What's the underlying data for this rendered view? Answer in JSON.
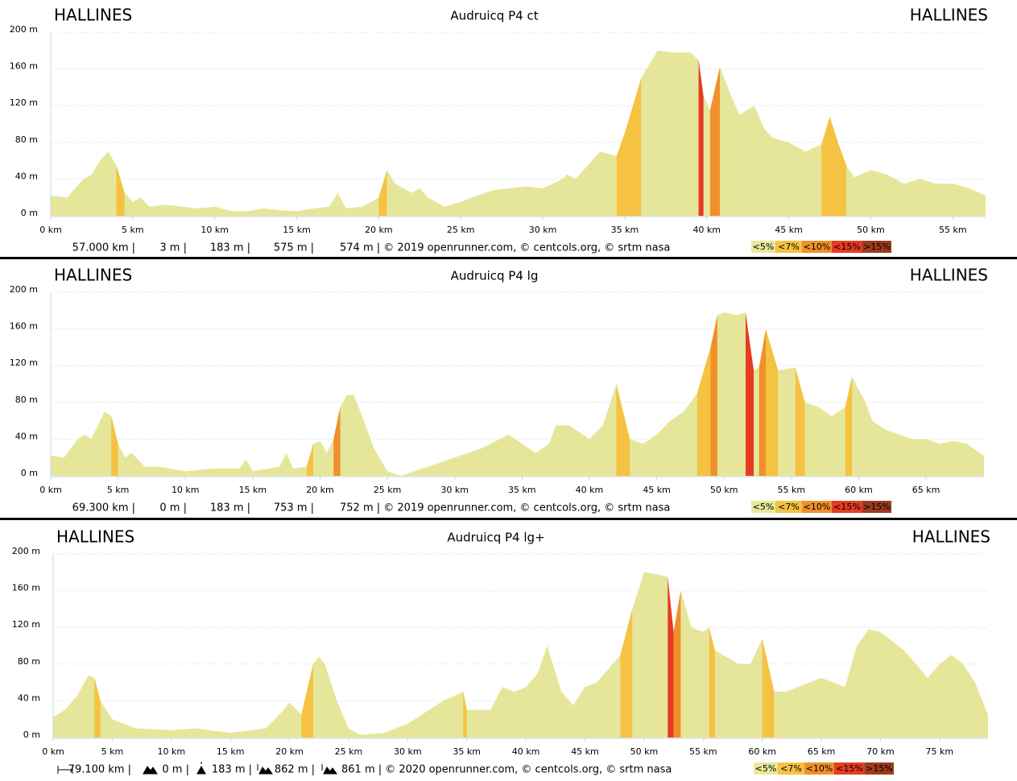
{
  "chart_data": [
    {
      "type": "area",
      "start_label": "HALLINES",
      "title": "Audruicq P4 ct",
      "end_label": "HALLINES",
      "x": [
        0,
        1,
        2,
        2.5,
        3,
        3.5,
        4,
        4.5,
        5,
        5.5,
        6,
        7,
        8,
        9,
        10,
        11,
        12,
        13,
        14,
        15,
        16,
        17,
        17.5,
        18,
        19,
        20,
        20.5,
        21,
        21.5,
        22,
        22.5,
        23,
        24,
        25,
        26,
        27,
        28,
        29,
        30,
        31,
        31.5,
        32,
        33,
        33.5,
        34.5,
        35,
        35.5,
        36,
        36.5,
        37,
        38,
        39,
        39.5,
        39.8,
        40.2,
        40.8,
        41.5,
        42,
        42.9,
        43.5,
        44,
        45,
        46,
        47,
        47.5,
        48,
        48.5,
        49,
        50,
        51,
        52,
        53,
        54,
        55,
        56,
        57
      ],
      "values": [
        22,
        20,
        40,
        45,
        60,
        70,
        55,
        25,
        15,
        20,
        10,
        12,
        10,
        8,
        10,
        5,
        5,
        8,
        6,
        5,
        8,
        10,
        25,
        8,
        10,
        20,
        50,
        35,
        30,
        25,
        30,
        20,
        10,
        15,
        22,
        28,
        30,
        32,
        30,
        38,
        45,
        40,
        60,
        70,
        65,
        90,
        120,
        150,
        165,
        180,
        178,
        178,
        170,
        130,
        115,
        162,
        130,
        110,
        120,
        95,
        85,
        80,
        70,
        78,
        108,
        80,
        55,
        42,
        50,
        45,
        35,
        40,
        35,
        35,
        30,
        22
      ],
      "color": "#e6e69a",
      "xlim": [
        0,
        57
      ],
      "ylim": [
        0,
        200
      ],
      "xticks": [
        {
          "value": 0,
          "label": "0 km"
        },
        {
          "value": 5,
          "label": "5 km"
        },
        {
          "value": 10,
          "label": "10 km"
        },
        {
          "value": 15,
          "label": "15 km"
        },
        {
          "value": 20,
          "label": "20 km"
        },
        {
          "value": 25,
          "label": "25 km"
        },
        {
          "value": 30,
          "label": "30 km"
        },
        {
          "value": 35,
          "label": "35 km"
        },
        {
          "value": 40,
          "label": "40 km"
        },
        {
          "value": 45,
          "label": "45 km"
        },
        {
          "value": 50,
          "label": "50 km"
        },
        {
          "value": 55,
          "label": "55 km"
        }
      ],
      "yticks": [
        {
          "value": 0,
          "label": "0 m"
        },
        {
          "value": 40,
          "label": "40 m"
        },
        {
          "value": 80,
          "label": "80 m"
        },
        {
          "value": 120,
          "label": "120 m"
        },
        {
          "value": 160,
          "label": "160 m"
        },
        {
          "value": 200,
          "label": "200 m"
        }
      ],
      "stats": [
        "57.000 km |",
        "3 m |",
        "183 m |",
        "575 m |",
        "574 m | © 2019 openrunner.com, © centcols.org, © srtm nasa"
      ],
      "gradient_legend": [
        {
          "label": "<5%",
          "value": 5,
          "color": "#e8e89a"
        },
        {
          "label": "<7%",
          "value": 7,
          "color": "#f5c242"
        },
        {
          "label": "<10%",
          "value": 10,
          "color": "#f0902a"
        },
        {
          "label": "<15%",
          "value": 15,
          "color": "#e63c22"
        },
        {
          "label": ">15%",
          "value": 15,
          "color": "#9c3c1c"
        }
      ]
    },
    {
      "type": "area",
      "start_label": "HALLINES",
      "title": "Audruicq P4 lg",
      "end_label": "HALLINES",
      "x": [
        0,
        1,
        2,
        2.5,
        3,
        3.5,
        4,
        4.5,
        5,
        5.5,
        6,
        7,
        8,
        10,
        12,
        14,
        14.5,
        15,
        17,
        17.5,
        18,
        19,
        19.5,
        20,
        20.5,
        21,
        21.5,
        22,
        22.5,
        23,
        24,
        25,
        26,
        28,
        30,
        32,
        34,
        35,
        36,
        37,
        37.5,
        38.5,
        39,
        40,
        41,
        42,
        42.5,
        43,
        44,
        45,
        46,
        47,
        48,
        49,
        49.5,
        50,
        51,
        51.6,
        52.2,
        52.6,
        53.1,
        54,
        55.3,
        56,
        57,
        58,
        59,
        59.5,
        60.5,
        61,
        62,
        63,
        64,
        65,
        66,
        67,
        68,
        69.3
      ],
      "values": [
        22,
        20,
        40,
        45,
        40,
        55,
        70,
        65,
        35,
        20,
        25,
        10,
        10,
        5,
        8,
        8,
        18,
        5,
        10,
        25,
        8,
        10,
        35,
        38,
        25,
        40,
        75,
        88,
        88,
        70,
        30,
        5,
        0,
        10,
        20,
        30,
        45,
        35,
        25,
        35,
        55,
        55,
        50,
        40,
        55,
        100,
        70,
        40,
        35,
        45,
        60,
        70,
        90,
        140,
        175,
        178,
        175,
        178,
        115,
        118,
        160,
        115,
        118,
        80,
        75,
        65,
        75,
        108,
        80,
        60,
        50,
        45,
        40,
        40,
        35,
        38,
        35,
        22
      ],
      "color": "#e6e69a",
      "xlim": [
        0,
        69.3
      ],
      "ylim": [
        0,
        200
      ],
      "xticks": [
        {
          "value": 0,
          "label": "0 km"
        },
        {
          "value": 5,
          "label": "5 km"
        },
        {
          "value": 10,
          "label": "10 km"
        },
        {
          "value": 15,
          "label": "15 km"
        },
        {
          "value": 20,
          "label": "20 km"
        },
        {
          "value": 25,
          "label": "25 km"
        },
        {
          "value": 30,
          "label": "30 km"
        },
        {
          "value": 35,
          "label": "35 km"
        },
        {
          "value": 40,
          "label": "40 km"
        },
        {
          "value": 45,
          "label": "45 km"
        },
        {
          "value": 50,
          "label": "50 km"
        },
        {
          "value": 55,
          "label": "55 km"
        },
        {
          "value": 60,
          "label": "60 km"
        },
        {
          "value": 65,
          "label": "65 km"
        }
      ],
      "yticks": [
        {
          "value": 0,
          "label": "0 m"
        },
        {
          "value": 40,
          "label": "40 m"
        },
        {
          "value": 80,
          "label": "80 m"
        },
        {
          "value": 120,
          "label": "120 m"
        },
        {
          "value": 160,
          "label": "160 m"
        },
        {
          "value": 200,
          "label": "200 m"
        }
      ],
      "stats": [
        "69.300 km |",
        "0 m |",
        "183 m |",
        "753 m |",
        "752 m | © 2019 openrunner.com, © centcols.org, © srtm nasa"
      ],
      "gradient_legend": [
        {
          "label": "<5%",
          "value": 5,
          "color": "#e8e89a"
        },
        {
          "label": "<7%",
          "value": 7,
          "color": "#f5c242"
        },
        {
          "label": "<10%",
          "value": 10,
          "color": "#f0902a"
        },
        {
          "label": "<15%",
          "value": 15,
          "color": "#e63c22"
        },
        {
          "label": ">15%",
          "value": 15,
          "color": "#9c3c1c"
        }
      ]
    },
    {
      "type": "area",
      "start_label": "HALLINES",
      "title": "Audruicq P4 lg+",
      "end_label": "HALLINES",
      "x": [
        0,
        1,
        2,
        3,
        3.5,
        4,
        5,
        6,
        7,
        10,
        12,
        15,
        18,
        19.5,
        20,
        21,
        22,
        22.5,
        23,
        24,
        25,
        26,
        28,
        30,
        33,
        34.7,
        35,
        37,
        38,
        39,
        40,
        41,
        41.8,
        43,
        44,
        45,
        46,
        47,
        48,
        49,
        49.5,
        50,
        51,
        52,
        52.5,
        53.1,
        54,
        55,
        55.5,
        56,
        58,
        59,
        60,
        61,
        62,
        64,
        65,
        67,
        68,
        69,
        70,
        71,
        72,
        73,
        74,
        75,
        76,
        77,
        78,
        79.1
      ],
      "values": [
        22,
        30,
        45,
        68,
        65,
        40,
        20,
        15,
        10,
        8,
        10,
        5,
        10,
        30,
        38,
        25,
        80,
        88,
        80,
        40,
        10,
        3,
        5,
        15,
        40,
        50,
        30,
        30,
        55,
        50,
        55,
        70,
        100,
        50,
        35,
        55,
        60,
        75,
        90,
        140,
        160,
        180,
        178,
        175,
        115,
        160,
        120,
        115,
        120,
        95,
        80,
        80,
        108,
        50,
        50,
        60,
        65,
        55,
        100,
        118,
        115,
        105,
        95,
        80,
        65,
        80,
        90,
        80,
        60,
        25
      ],
      "color": "#e6e69a",
      "xlim": [
        0,
        79.1
      ],
      "ylim": [
        0,
        200
      ],
      "xticks": [
        {
          "value": 0,
          "label": "0 km"
        },
        {
          "value": 5,
          "label": "5 km"
        },
        {
          "value": 10,
          "label": "10 km"
        },
        {
          "value": 15,
          "label": "15 km"
        },
        {
          "value": 20,
          "label": "20 km"
        },
        {
          "value": 25,
          "label": "25 km"
        },
        {
          "value": 30,
          "label": "30 km"
        },
        {
          "value": 35,
          "label": "35 km"
        },
        {
          "value": 40,
          "label": "40 km"
        },
        {
          "value": 45,
          "label": "45 km"
        },
        {
          "value": 50,
          "label": "50 km"
        },
        {
          "value": 55,
          "label": "55 km"
        },
        {
          "value": 60,
          "label": "60 km"
        },
        {
          "value": 65,
          "label": "65 km"
        },
        {
          "value": 70,
          "label": "70 km"
        },
        {
          "value": 75,
          "label": "75 km"
        }
      ],
      "yticks": [
        {
          "value": 0,
          "label": "0 m"
        },
        {
          "value": 40,
          "label": "40 m"
        },
        {
          "value": 80,
          "label": "80 m"
        },
        {
          "value": 120,
          "label": "120 m"
        },
        {
          "value": 160,
          "label": "160 m"
        },
        {
          "value": 200,
          "label": "200 m"
        }
      ],
      "stats": [
        "79.100 km |",
        "0 m |",
        "183 m |",
        "862 m |",
        "861 m | © 2020 openrunner.com, © centcols.org, © srtm nasa"
      ],
      "gradient_legend": [
        {
          "label": "<5%",
          "value": 5,
          "color": "#e8e89a"
        },
        {
          "label": "<7%",
          "value": 7,
          "color": "#f5c242"
        },
        {
          "label": "<10%",
          "value": 10,
          "color": "#f0902a"
        },
        {
          "label": "<15%",
          "value": 15,
          "color": "#e63c22"
        },
        {
          "label": ">15%",
          "value": 15,
          "color": "#9c3c1c"
        }
      ]
    }
  ]
}
